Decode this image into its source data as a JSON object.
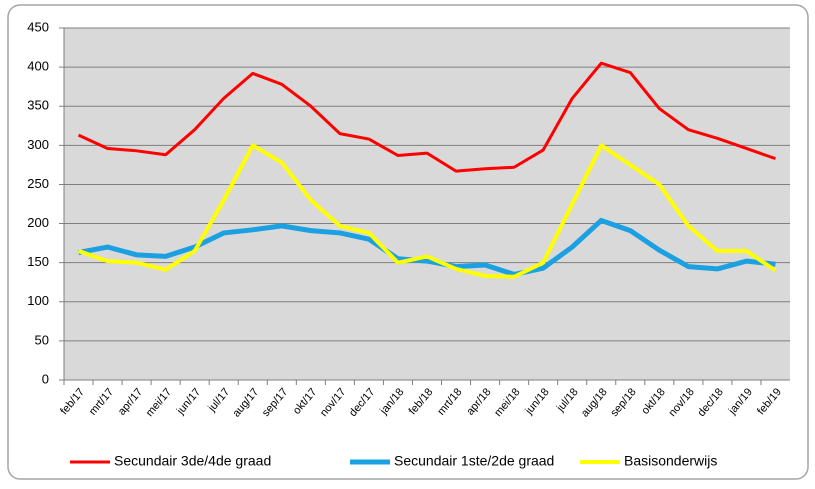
{
  "chart_data": {
    "type": "line",
    "categories": [
      "feb/17",
      "mrt/17",
      "apr/17",
      "mei/17",
      "jun/17",
      "jul/17",
      "aug/17",
      "sep/17",
      "okt/17",
      "nov/17",
      "dec/17",
      "jan/18",
      "feb/18",
      "mrt/18",
      "apr/18",
      "mei/18",
      "jun/18",
      "jul/18",
      "aug/18",
      "sep/18",
      "okt/18",
      "nov/18",
      "dec/18",
      "jan/19",
      "feb/19"
    ],
    "series": [
      {
        "name": "Secundair 3de/4de graad",
        "color": "#ff0000",
        "values": [
          313,
          296,
          293,
          288,
          320,
          360,
          392,
          378,
          350,
          315,
          308,
          287,
          290,
          267,
          270,
          272,
          294,
          360,
          405,
          393,
          347,
          320,
          309,
          296,
          283
        ]
      },
      {
        "name": "Secundair 1ste/2de graad",
        "color": "#1ba1e2",
        "values": [
          163,
          170,
          160,
          158,
          170,
          188,
          192,
          197,
          191,
          188,
          180,
          155,
          152,
          145,
          147,
          135,
          143,
          170,
          204,
          191,
          166,
          145,
          142,
          152,
          148
        ]
      },
      {
        "name": "Basisonderwijs",
        "color": "#ffff00",
        "values": [
          165,
          152,
          150,
          141,
          165,
          230,
          300,
          278,
          230,
          197,
          188,
          150,
          158,
          142,
          133,
          132,
          150,
          225,
          300,
          275,
          250,
          197,
          165,
          165,
          140
        ]
      }
    ],
    "ylim": [
      0,
      450
    ],
    "yticks": [
      0,
      50,
      100,
      150,
      200,
      250,
      300,
      350,
      400,
      450
    ],
    "grid": true,
    "legend": "bottom"
  }
}
